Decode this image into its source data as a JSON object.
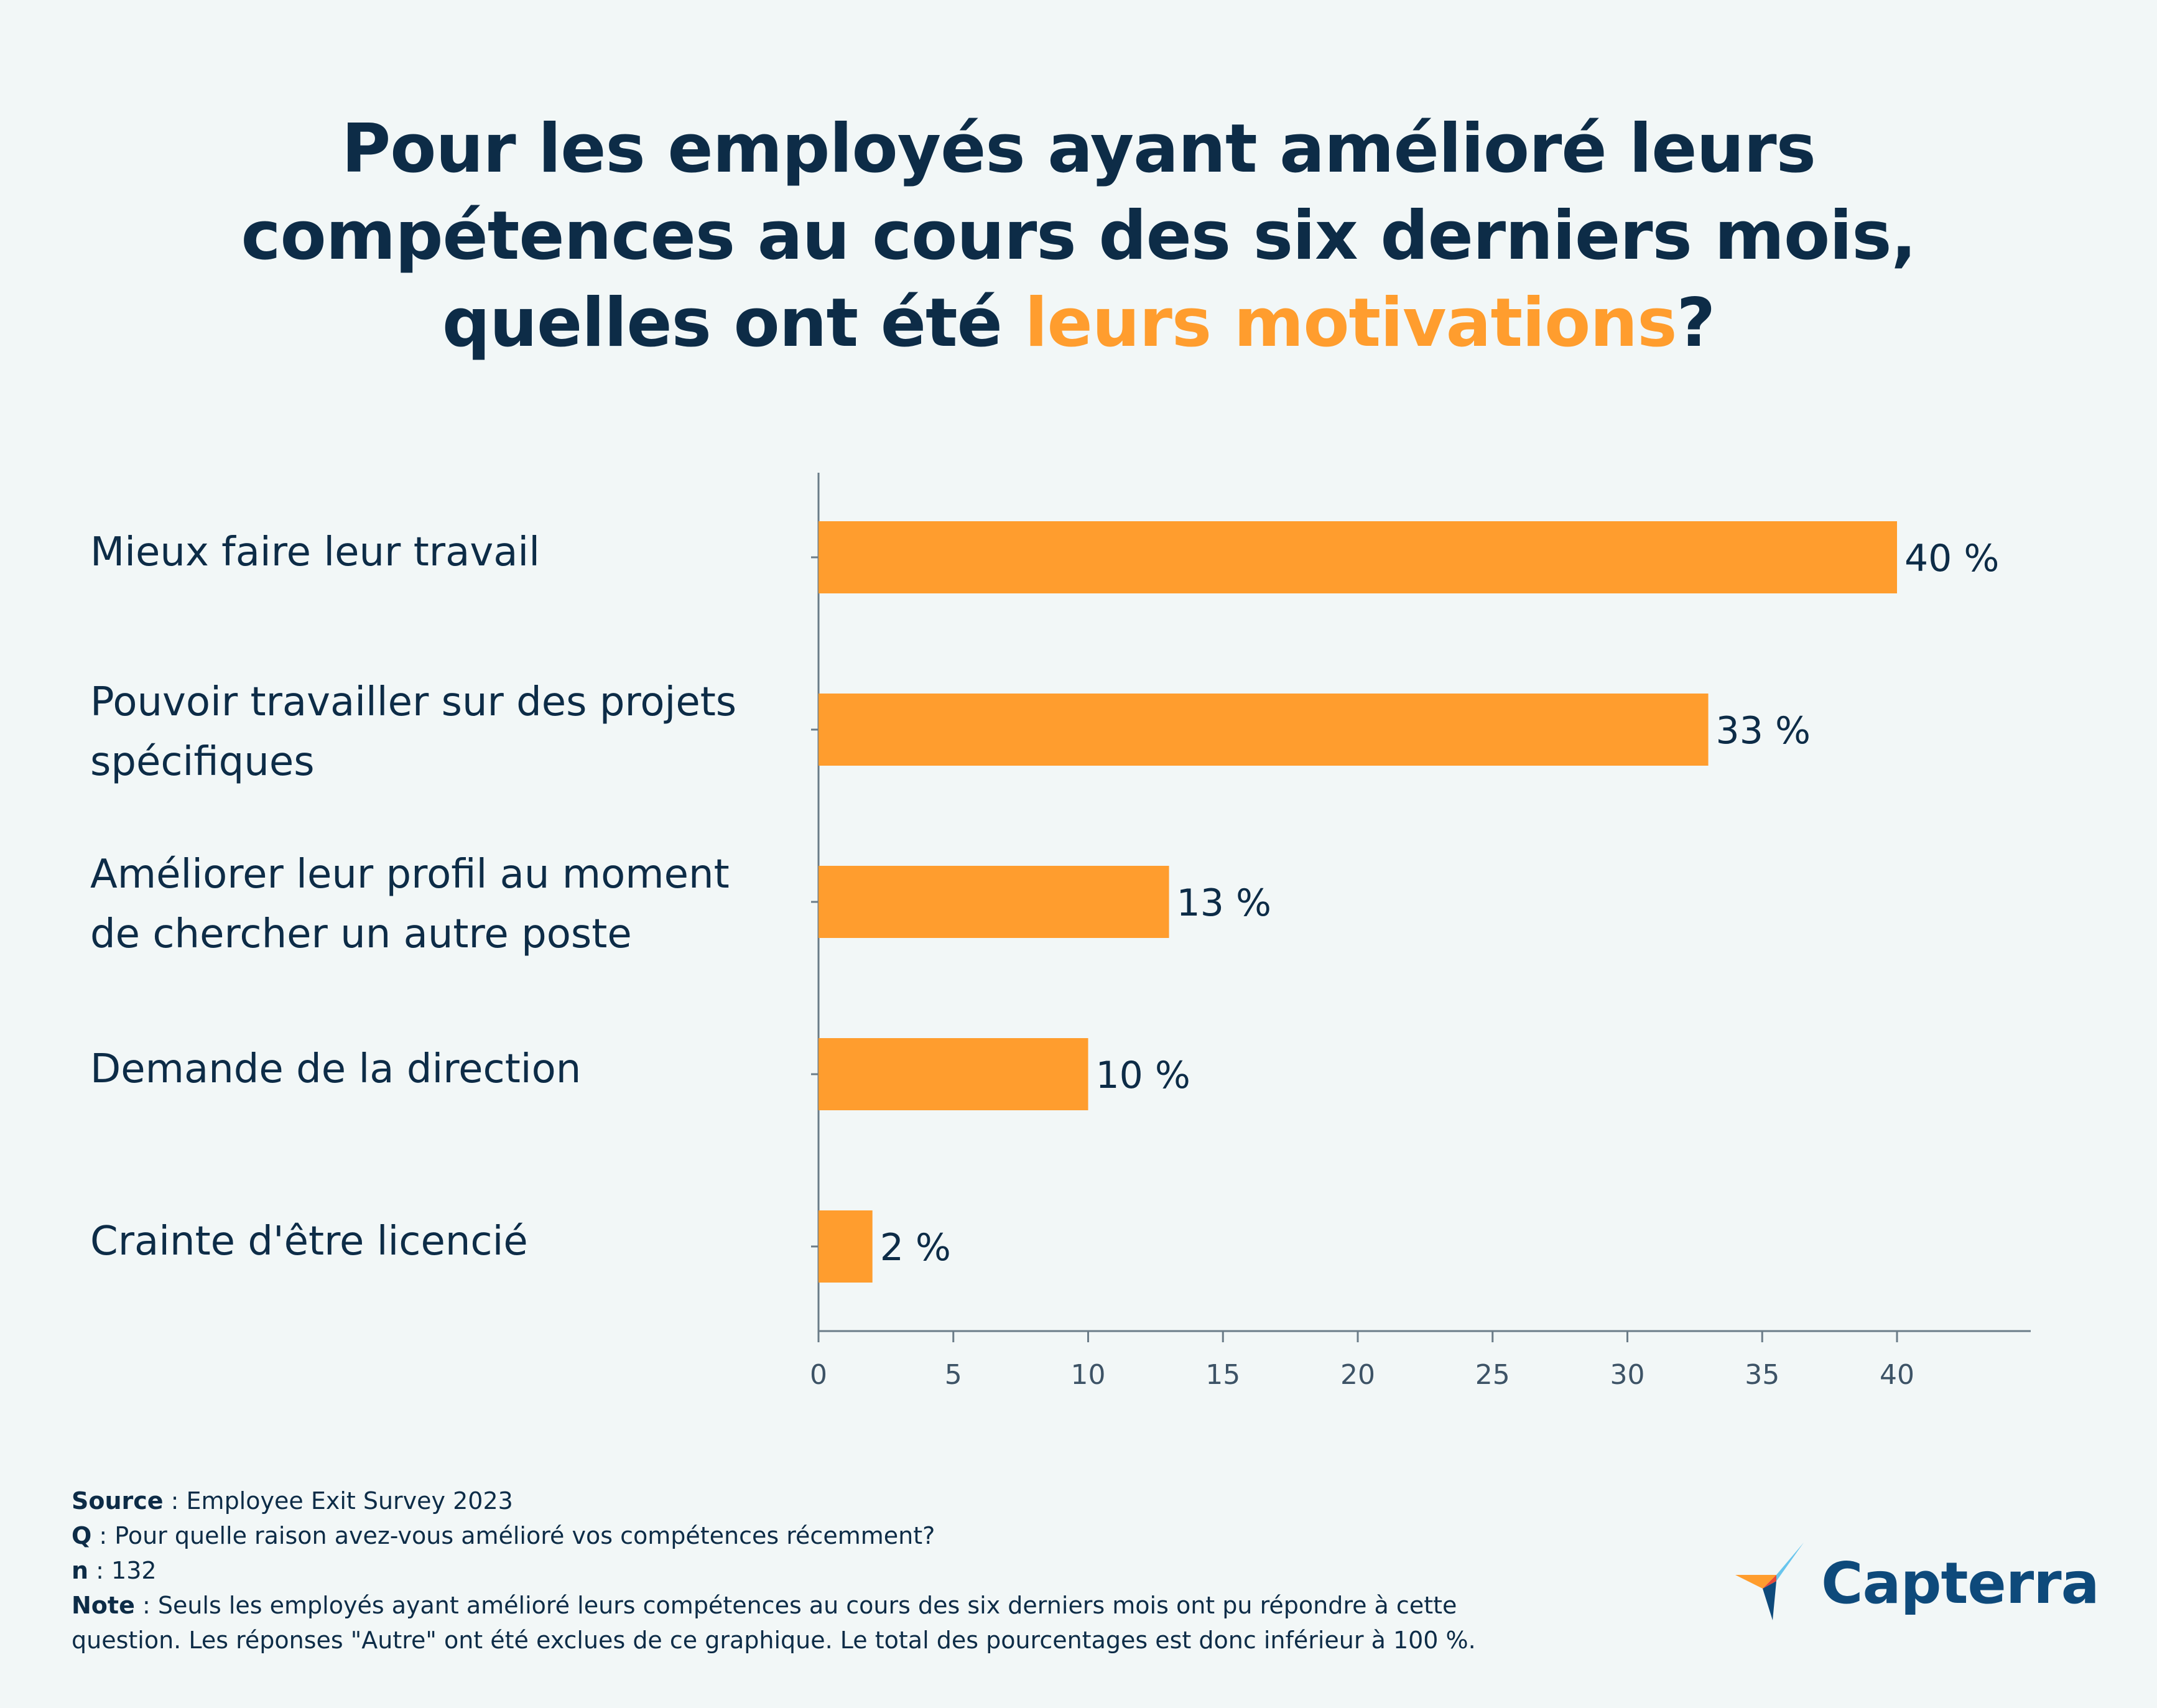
{
  "title": {
    "line1": "Pour les employés ayant amélioré leurs",
    "line2": "compétences au cours des six derniers mois,",
    "line3_prefix": "quelles ont été ",
    "line3_accent": "leurs motivations",
    "line3_suffix": "?"
  },
  "colors": {
    "bar": "#ff9d2e",
    "text": "#0d2c47",
    "axis": "#6b7c88",
    "accent": "#ff9d2e",
    "background": "#f2f7f7"
  },
  "chart_data": {
    "type": "bar",
    "orientation": "horizontal",
    "title": "Pour les employés ayant amélioré leurs compétences au cours des six derniers mois, quelles ont été leurs motivations?",
    "categories": [
      "Mieux faire leur travail",
      "Pouvoir travailler sur des projets spécifiques",
      "Améliorer leur profil au moment de chercher un autre poste",
      "Demande de la direction",
      "Crainte d'être licencié"
    ],
    "category_lines": [
      [
        "Mieux faire leur travail"
      ],
      [
        "Pouvoir travailler sur des projets",
        "spécifiques"
      ],
      [
        "Améliorer leur profil au moment",
        "de chercher un autre poste"
      ],
      [
        "Demande de la direction"
      ],
      [
        "Crainte d'être licencié"
      ]
    ],
    "values": [
      40,
      33,
      13,
      10,
      2
    ],
    "value_labels": [
      "40 %",
      "33 %",
      "13 %",
      "10 %",
      "2 %"
    ],
    "xlim": [
      0,
      45
    ],
    "xticks": [
      0,
      5,
      10,
      15,
      20,
      25,
      30,
      35,
      40
    ],
    "xtick_labels": [
      "0",
      "5",
      "10",
      "15",
      "20",
      "25",
      "30",
      "35",
      "40"
    ],
    "xlabel": "",
    "ylabel": "",
    "grid": false,
    "legend": "none"
  },
  "footer": {
    "source_label": "Source",
    "source_text": " : Employee Exit Survey 2023",
    "q_label": "Q",
    "q_text": " : Pour quelle raison avez-vous amélioré vos compétences récemment?",
    "n_label": "n",
    "n_text": " : 132",
    "note_label": "Note",
    "note_text_line1": " : Seuls les employés ayant amélioré leurs compétences au cours des six derniers mois ont pu répondre à cette",
    "note_text_line2": "question. Les réponses \"Autre\" ont été exclues de ce graphique. Le total des pourcentages est donc inférieur à 100 %."
  },
  "logo": {
    "text": "Capterra",
    "icon": "capterra-arrow-icon"
  }
}
